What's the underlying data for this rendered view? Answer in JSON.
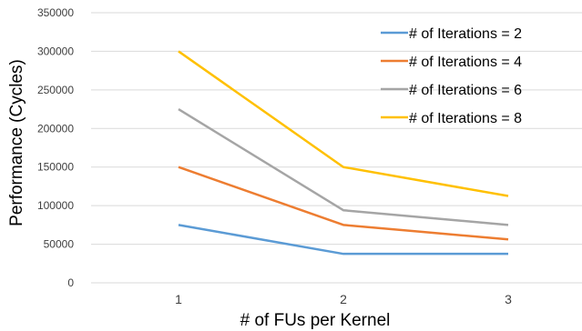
{
  "chart_data": {
    "type": "line",
    "title": "",
    "xlabel": "# of FUs per Kernel",
    "ylabel": "Performance (Cycles)",
    "categories": [
      "1",
      "2",
      "3"
    ],
    "ylim": [
      0,
      350000
    ],
    "yticks": [
      "0",
      "50000",
      "100000",
      "150000",
      "200000",
      "250000",
      "300000",
      "350000"
    ],
    "grid": true,
    "legend_position": "top-right",
    "series": [
      {
        "name": "# of Iterations = 2",
        "color": "#5B9BD5",
        "values": [
          75000,
          37500,
          37500
        ]
      },
      {
        "name": "# of Iterations = 4",
        "color": "#ED7D31",
        "values": [
          150000,
          75000,
          56250
        ]
      },
      {
        "name": "# of Iterations = 6",
        "color": "#A5A5A5",
        "values": [
          225000,
          94000,
          75000
        ]
      },
      {
        "name": "# of Iterations = 8",
        "color": "#FFC000",
        "values": [
          300000,
          150000,
          112500
        ]
      }
    ]
  }
}
